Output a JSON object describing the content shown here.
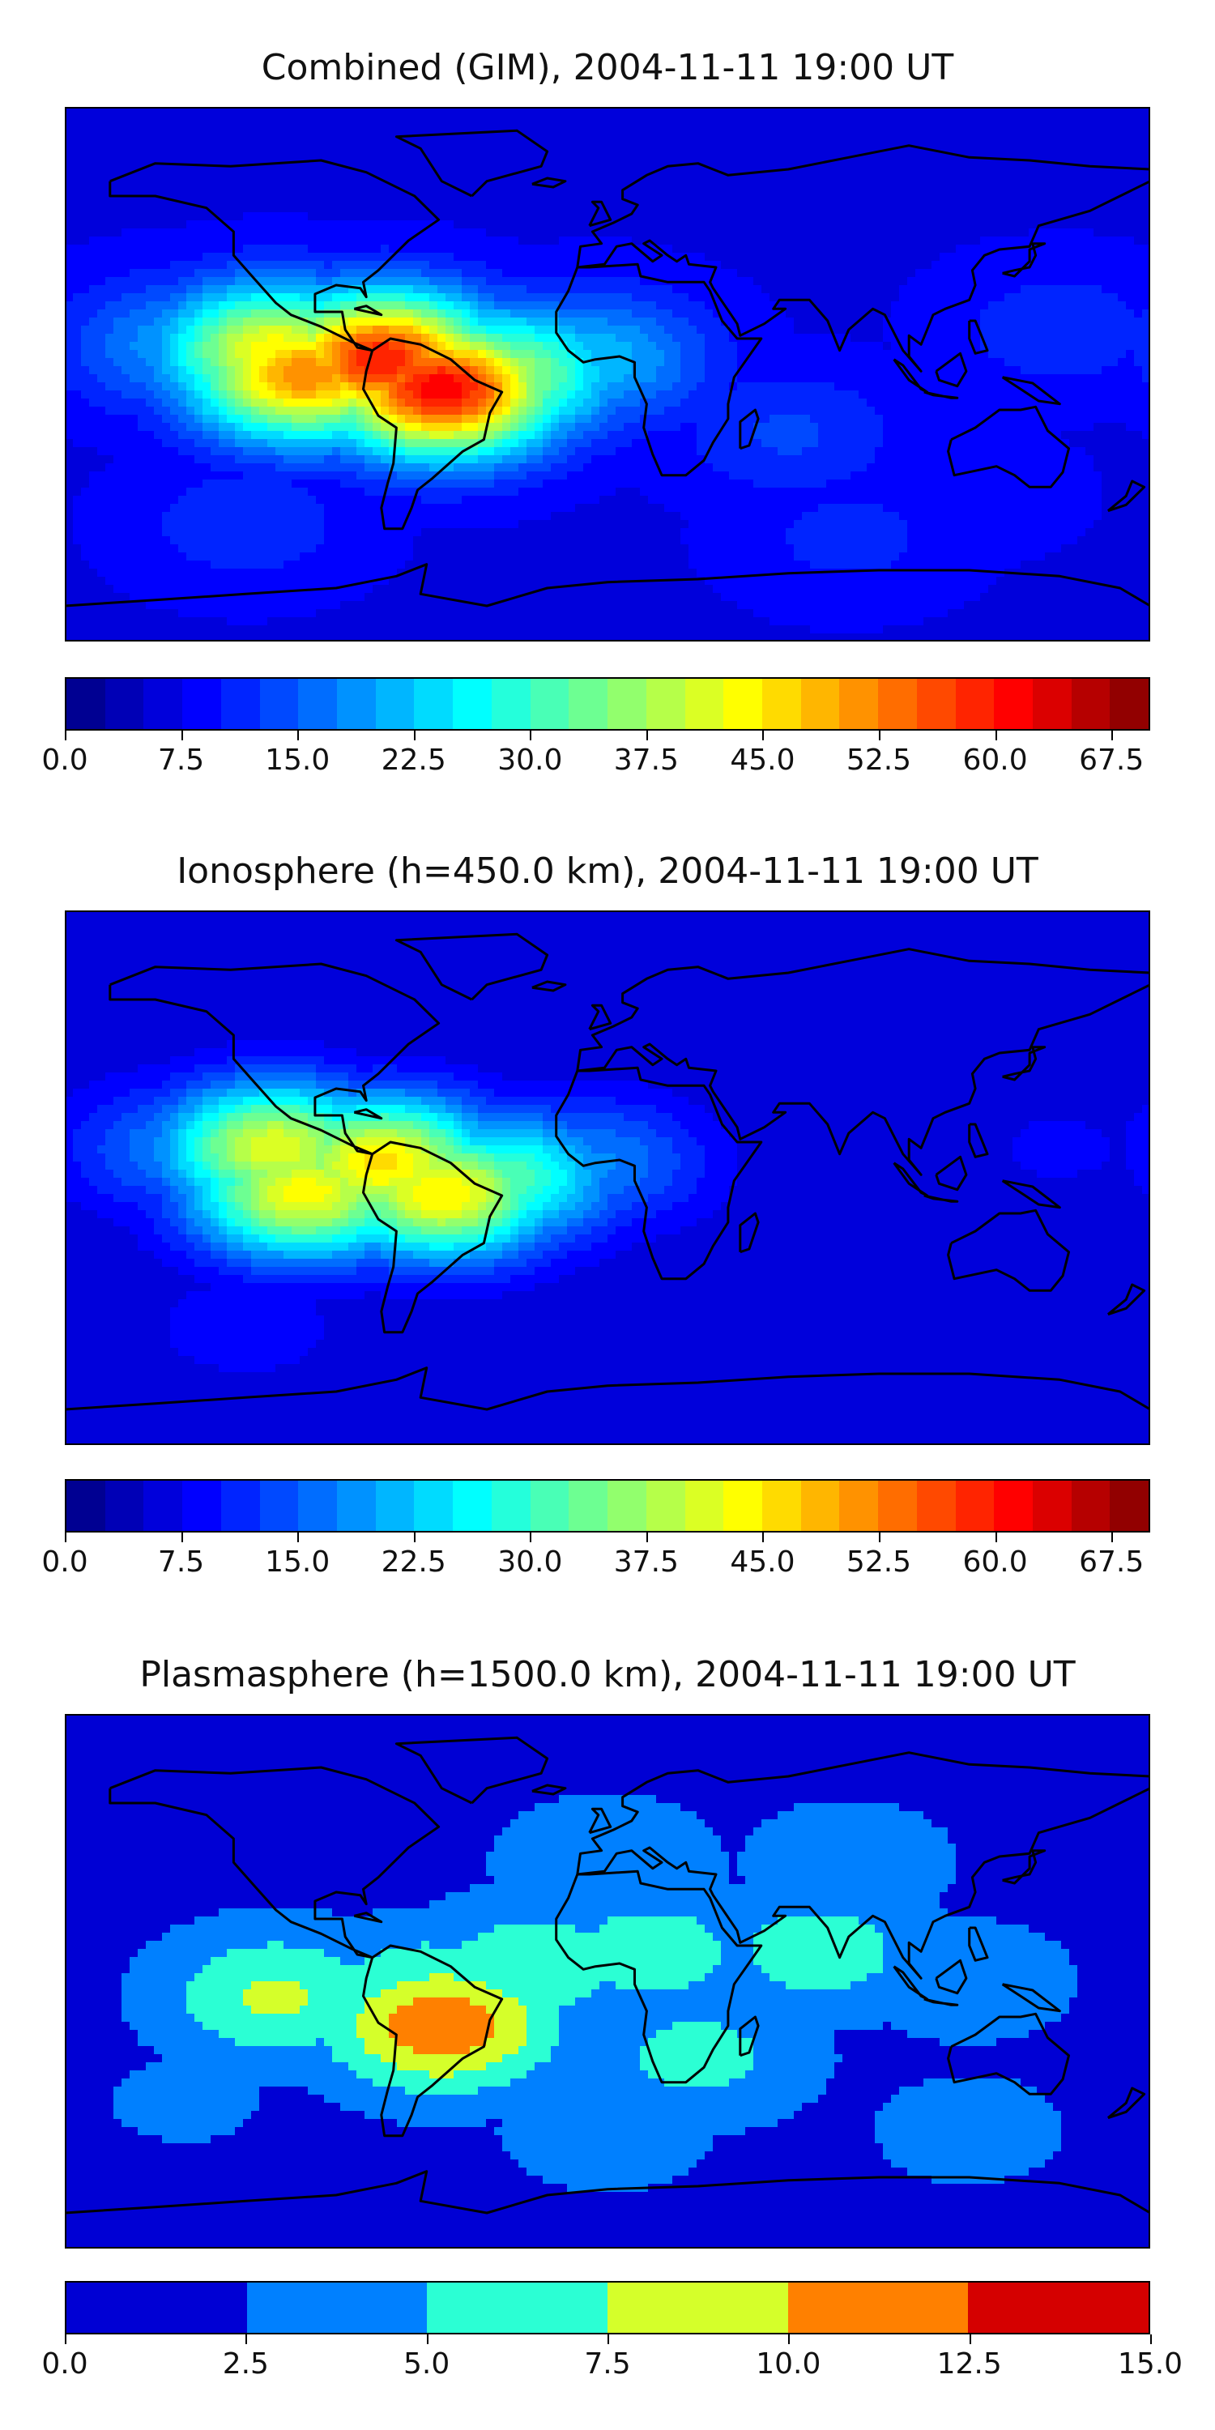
{
  "chart_data": [
    {
      "type": "heatmap",
      "title": "Combined (GIM), 2004-11-11 19:00 UT",
      "colorbar": {
        "min": 0.0,
        "max": 70.0,
        "levels": 28,
        "tick_values": [
          0.0,
          7.5,
          15.0,
          22.5,
          30.0,
          37.5,
          45.0,
          52.5,
          60.0,
          67.5
        ],
        "tick_labels": [
          "0.0",
          "7.5",
          "15.0",
          "22.5",
          "30.0",
          "37.5",
          "45.0",
          "52.5",
          "60.0",
          "67.5"
        ]
      },
      "background_value": 7,
      "blobs": [
        {
          "lon": -110,
          "lat": 8,
          "value": 44
        },
        {
          "lon": -75,
          "lat": 5,
          "value": 60
        },
        {
          "lon": -55,
          "lat": -5,
          "value": 62
        },
        {
          "lon": -100,
          "lat": 0,
          "value": 52
        },
        {
          "lon": -35,
          "lat": 0,
          "value": 38
        },
        {
          "lon": -5,
          "lat": 5,
          "value": 22
        },
        {
          "lon": -140,
          "lat": 10,
          "value": 20
        },
        {
          "lon": 60,
          "lat": -20,
          "value": 13
        },
        {
          "lon": 150,
          "lat": 15,
          "value": 12
        },
        {
          "lon": 80,
          "lat": -55,
          "value": 11
        },
        {
          "lon": -120,
          "lat": -50,
          "value": 12
        },
        {
          "lon": 120,
          "lat": -40,
          "value": 9
        }
      ],
      "grid": false,
      "legend": "colorbar-below"
    },
    {
      "type": "heatmap",
      "title": "Ionosphere  (h=450.0 km), 2004-11-11 19:00 UT",
      "colorbar": {
        "min": 0.0,
        "max": 70.0,
        "levels": 28,
        "tick_values": [
          0.0,
          7.5,
          15.0,
          22.5,
          30.0,
          37.5,
          45.0,
          52.5,
          60.0,
          67.5
        ],
        "tick_labels": [
          "0.0",
          "7.5",
          "15.0",
          "22.5",
          "30.0",
          "37.5",
          "45.0",
          "52.5",
          "60.0",
          "67.5"
        ]
      },
      "background_value": 5,
      "blobs": [
        {
          "lon": -110,
          "lat": 10,
          "value": 42
        },
        {
          "lon": -75,
          "lat": 5,
          "value": 46
        },
        {
          "lon": -55,
          "lat": -5,
          "value": 45
        },
        {
          "lon": -100,
          "lat": -5,
          "value": 44
        },
        {
          "lon": -35,
          "lat": 0,
          "value": 32
        },
        {
          "lon": -5,
          "lat": 5,
          "value": 18
        },
        {
          "lon": -140,
          "lat": 10,
          "value": 18
        },
        {
          "lon": 100,
          "lat": -55,
          "value": 7
        },
        {
          "lon": 150,
          "lat": 10,
          "value": 8
        },
        {
          "lon": -120,
          "lat": -50,
          "value": 9
        }
      ],
      "grid": false,
      "legend": "colorbar-below"
    },
    {
      "type": "heatmap",
      "title": "Plasmasphere (h=1500.0 km), 2004-11-11 19:00 UT",
      "colorbar": {
        "min": 0.0,
        "max": 15.0,
        "levels": 6,
        "tick_values": [
          0.0,
          2.5,
          5.0,
          7.5,
          10.0,
          12.5,
          15.0
        ],
        "tick_labels": [
          "0.0",
          "2.5",
          "5.0",
          "7.5",
          "10.0",
          "12.5",
          "15.0"
        ]
      },
      "background_value": 1.5,
      "blobs": [
        {
          "lon": -55,
          "lat": -15,
          "value": 12
        },
        {
          "lon": -60,
          "lat": -5,
          "value": 8
        },
        {
          "lon": -110,
          "lat": -5,
          "value": 8
        },
        {
          "lon": -25,
          "lat": 5,
          "value": 7
        },
        {
          "lon": 15,
          "lat": 10,
          "value": 6.5
        },
        {
          "lon": 70,
          "lat": 10,
          "value": 6.5
        },
        {
          "lon": 30,
          "lat": -25,
          "value": 6
        },
        {
          "lon": 0,
          "lat": 40,
          "value": 4.5
        },
        {
          "lon": 80,
          "lat": 40,
          "value": 4
        },
        {
          "lon": 120,
          "lat": 0,
          "value": 4
        },
        {
          "lon": 0,
          "lat": -50,
          "value": 4
        },
        {
          "lon": 120,
          "lat": -50,
          "value": 3.5
        },
        {
          "lon": -140,
          "lat": -40,
          "value": 3
        }
      ],
      "grid": false,
      "legend": "colorbar-below"
    }
  ],
  "coastline_color": "#000000"
}
